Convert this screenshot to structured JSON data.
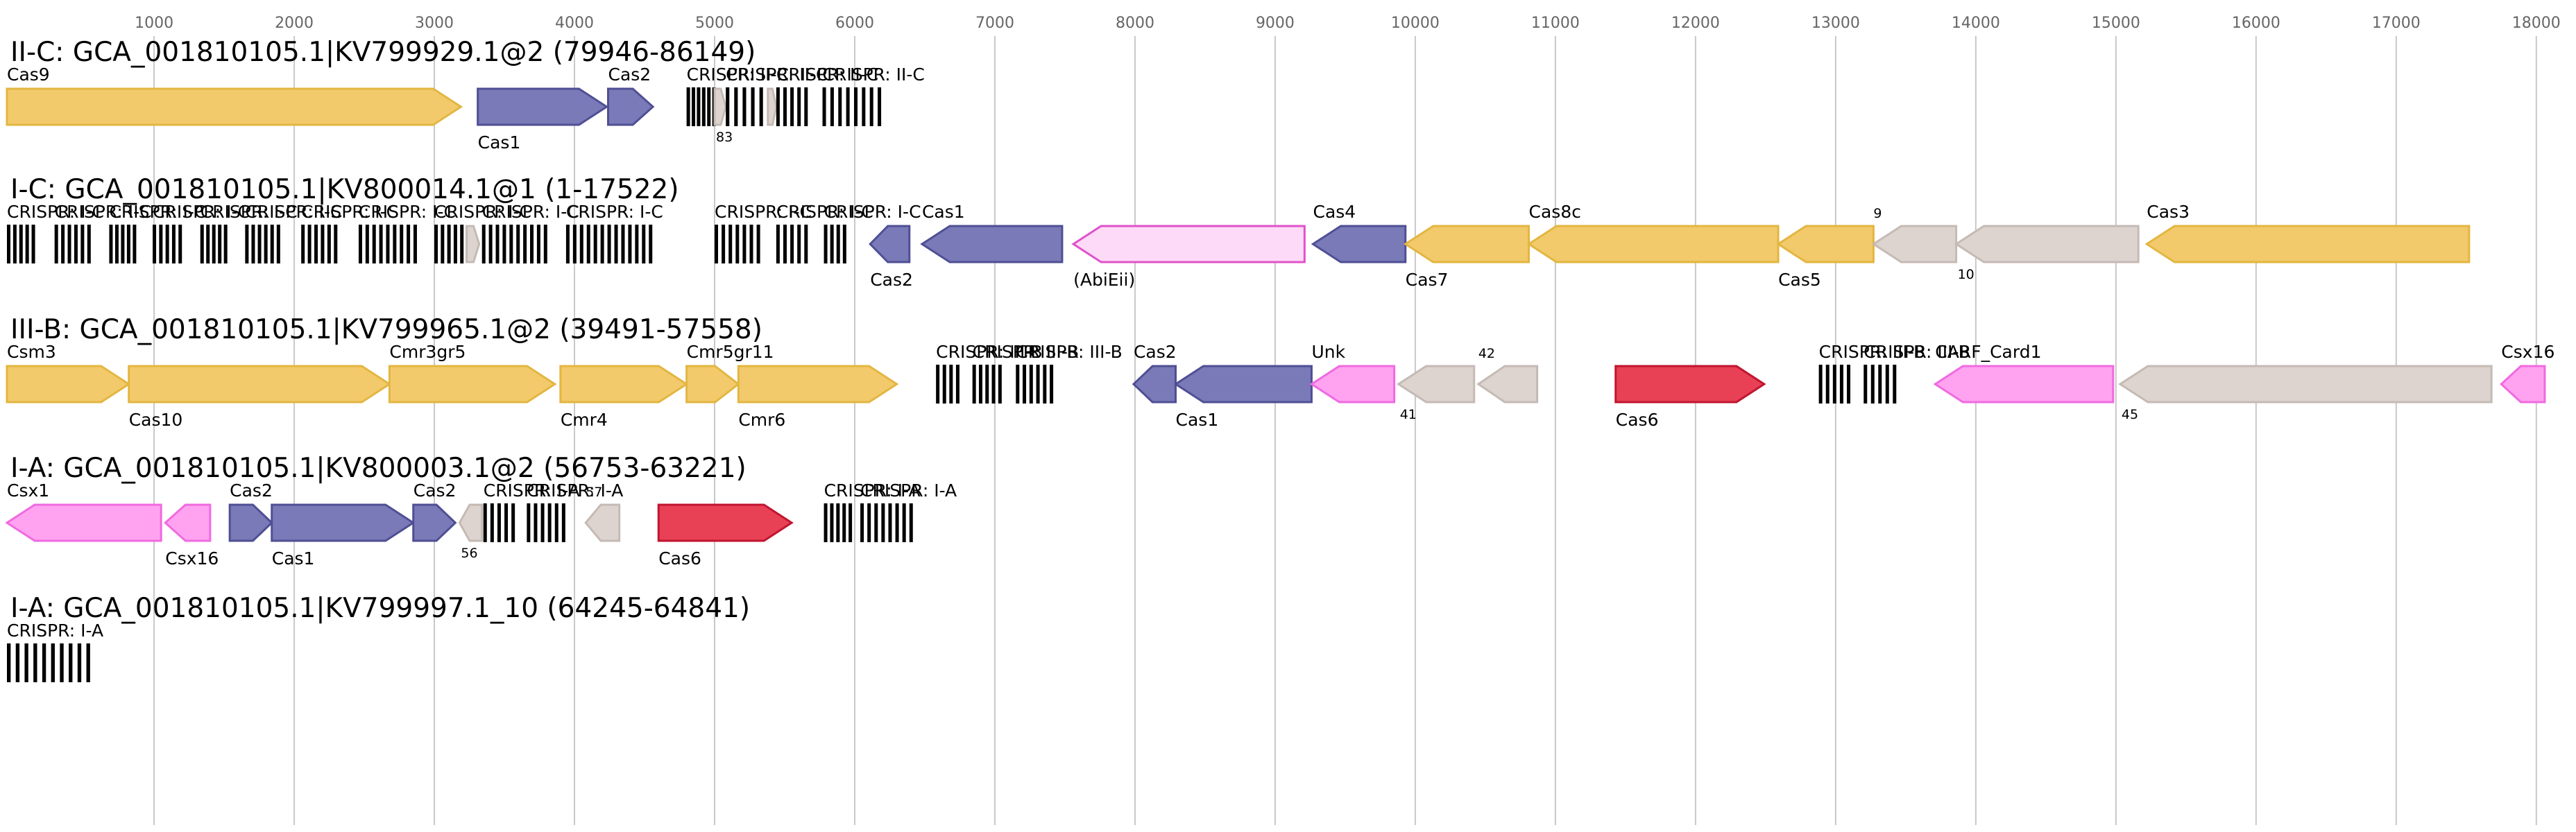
{
  "chart_data": {
    "type": "genome-diagram",
    "axis_ticks": [
      1000,
      2000,
      3000,
      4000,
      5000,
      6000,
      7000,
      8000,
      9000,
      10000,
      11000,
      12000,
      13000,
      14000,
      15000,
      16000,
      17000,
      18000
    ],
    "xlim": [
      -50,
      18100
    ],
    "colors": {
      "core": "#F2CA6B",
      "adapt": "#7A7AB8",
      "rare": "#FFA3F0",
      "cas6": "#E84155",
      "hypo": "#DDD4CF",
      "abi": "#FDDAF7"
    },
    "tracks": [
      {
        "title": "II-C: GCA_001810105.1|KV799929.1@2 (79946-86149)",
        "features": [
          {
            "kind": "gene",
            "start": -50,
            "end": 3190,
            "strand": 1,
            "color": "core",
            "label": "Cas9",
            "pos": "above"
          },
          {
            "kind": "gene",
            "start": 3310,
            "end": 4230,
            "strand": 1,
            "color": "adapt",
            "label": "Cas1",
            "pos": "below"
          },
          {
            "kind": "gene",
            "start": 4240,
            "end": 4560,
            "strand": 1,
            "color": "adapt",
            "label": "Cas2",
            "pos": "above"
          },
          {
            "kind": "crispr",
            "start": 4800,
            "end": 5020,
            "repeats": 6,
            "label": "CRISPR: II-C",
            "pos": "above"
          },
          {
            "kind": "gene",
            "start": 5000,
            "end": 5080,
            "strand": 1,
            "color": "hypo",
            "label": "83",
            "pos": "below",
            "small": true
          },
          {
            "kind": "crispr",
            "start": 5080,
            "end": 5380,
            "repeats": 5,
            "label": "CRISPR: II-C",
            "pos": "above"
          },
          {
            "kind": "gene",
            "start": 5380,
            "end": 5440,
            "strand": 1,
            "color": "hypo",
            "label": "",
            "pos": "none"
          },
          {
            "kind": "crispr",
            "start": 5440,
            "end": 5690,
            "repeats": 5,
            "label": "CRISPR: II-C",
            "pos": "above"
          },
          {
            "kind": "crispr",
            "start": 5770,
            "end": 6220,
            "repeats": 8,
            "label": "CRISPR: II-C",
            "pos": "above"
          }
        ]
      },
      {
        "title": "I-C: GCA_001810105.1|KV800014.1@1 (1-17522)",
        "features": [
          {
            "kind": "crispr",
            "start": -50,
            "end": 170,
            "repeats": 5,
            "label": "CRISPR: I-C",
            "pos": "above"
          },
          {
            "kind": "crispr",
            "start": 290,
            "end": 570,
            "repeats": 6,
            "label": "CRISPR: I-C",
            "pos": "above"
          },
          {
            "kind": "crispr",
            "start": 680,
            "end": 890,
            "repeats": 5,
            "label": "CRISPR: I-C",
            "pos": "above"
          },
          {
            "kind": "crispr",
            "start": 990,
            "end": 1220,
            "repeats": 5,
            "label": "CRISPR: I-C",
            "pos": "above"
          },
          {
            "kind": "crispr",
            "start": 1330,
            "end": 1540,
            "repeats": 5,
            "label": "CRISPR: I-C",
            "pos": "above"
          },
          {
            "kind": "crispr",
            "start": 1650,
            "end": 1920,
            "repeats": 6,
            "label": "CRISPR: I-C",
            "pos": "above"
          },
          {
            "kind": "crispr",
            "start": 2050,
            "end": 2330,
            "repeats": 6,
            "label": "CRISPR: I-C",
            "pos": "above"
          },
          {
            "kind": "crispr",
            "start": 2460,
            "end": 2900,
            "repeats": 9,
            "label": "CRISPR: I-C",
            "pos": "above"
          },
          {
            "kind": "crispr",
            "start": 3000,
            "end": 3230,
            "repeats": 5,
            "label": "CRISPR: I-C",
            "pos": "above"
          },
          {
            "kind": "gene",
            "start": 3230,
            "end": 3320,
            "strand": 1,
            "color": "hypo",
            "label": "",
            "pos": "none"
          },
          {
            "kind": "crispr",
            "start": 3340,
            "end": 3830,
            "repeats": 10,
            "label": "CRISPR: I-C",
            "pos": "above"
          },
          {
            "kind": "crispr",
            "start": 3940,
            "end": 4580,
            "repeats": 13,
            "label": "CRISPR: I-C",
            "pos": "above"
          },
          {
            "kind": "crispr",
            "start": 5000,
            "end": 5350,
            "repeats": 7,
            "label": "CRISPR: I-C",
            "pos": "above"
          },
          {
            "kind": "crispr",
            "start": 5440,
            "end": 5690,
            "repeats": 5,
            "label": "CRISPR: I-C",
            "pos": "above"
          },
          {
            "kind": "crispr",
            "start": 5780,
            "end": 5960,
            "repeats": 4,
            "label": "CRISPR: I-C",
            "pos": "above"
          },
          {
            "kind": "gene",
            "start": 6110,
            "end": 6390,
            "strand": -1,
            "color": "adapt",
            "label": "Cas2",
            "pos": "below"
          },
          {
            "kind": "gene",
            "start": 6480,
            "end": 7480,
            "strand": -1,
            "color": "adapt",
            "label": "Cas1",
            "pos": "above"
          },
          {
            "kind": "gene",
            "start": 7560,
            "end": 9210,
            "strand": -1,
            "color": "abi",
            "label": "(AbiEii)",
            "pos": "below"
          },
          {
            "kind": "gene",
            "start": 9270,
            "end": 9930,
            "strand": -1,
            "color": "adapt",
            "label": "Cas4",
            "pos": "above"
          },
          {
            "kind": "gene",
            "start": 9930,
            "end": 10810,
            "strand": -1,
            "color": "core",
            "label": "Cas7",
            "pos": "below"
          },
          {
            "kind": "gene",
            "start": 10810,
            "end": 12590,
            "strand": -1,
            "color": "core",
            "label": "Cas8c",
            "pos": "above"
          },
          {
            "kind": "gene",
            "start": 12590,
            "end": 13270,
            "strand": -1,
            "color": "core",
            "label": "Cas5",
            "pos": "below"
          },
          {
            "kind": "gene",
            "start": 13270,
            "end": 13860,
            "strand": -1,
            "color": "hypo",
            "label": "9",
            "pos": "above",
            "small": true
          },
          {
            "kind": "gene",
            "start": 13860,
            "end": 15160,
            "strand": -1,
            "color": "hypo",
            "label": "10",
            "pos": "below",
            "small": true
          },
          {
            "kind": "gene",
            "start": 15220,
            "end": 17520,
            "strand": -1,
            "color": "core",
            "label": "Cas3",
            "pos": "above"
          }
        ]
      },
      {
        "title": "III-B: GCA_001810105.1|KV799965.1@2 (39491-57558)",
        "features": [
          {
            "kind": "gene",
            "start": -50,
            "end": 820,
            "strand": 1,
            "color": "core",
            "label": "Csm3",
            "pos": "above"
          },
          {
            "kind": "gene",
            "start": 820,
            "end": 2680,
            "strand": 1,
            "color": "core",
            "label": "Cas10",
            "pos": "below"
          },
          {
            "kind": "gene",
            "start": 2680,
            "end": 3860,
            "strand": 1,
            "color": "core",
            "label": "Cmr3gr5",
            "pos": "above"
          },
          {
            "kind": "gene",
            "start": 3900,
            "end": 4800,
            "strand": 1,
            "color": "core",
            "label": "Cmr4",
            "pos": "below"
          },
          {
            "kind": "gene",
            "start": 4800,
            "end": 5170,
            "strand": 1,
            "color": "core",
            "label": "Cmr5gr11",
            "pos": "above"
          },
          {
            "kind": "gene",
            "start": 5170,
            "end": 6300,
            "strand": 1,
            "color": "core",
            "label": "Cmr6",
            "pos": "below"
          },
          {
            "kind": "crispr",
            "start": 6580,
            "end": 6770,
            "repeats": 4,
            "label": "CRISPR: III-B",
            "pos": "above"
          },
          {
            "kind": "crispr",
            "start": 6840,
            "end": 7070,
            "repeats": 5,
            "label": "CRISPR: III-B",
            "pos": "above"
          },
          {
            "kind": "crispr",
            "start": 7150,
            "end": 7440,
            "repeats": 6,
            "label": "CRISPR: III-B",
            "pos": "above"
          },
          {
            "kind": "gene",
            "start": 7990,
            "end": 8290,
            "strand": -1,
            "color": "adapt",
            "label": "Cas2",
            "pos": "above"
          },
          {
            "kind": "gene",
            "start": 8290,
            "end": 9260,
            "strand": -1,
            "color": "adapt",
            "label": "Cas1",
            "pos": "below"
          },
          {
            "kind": "gene",
            "start": 9260,
            "end": 9850,
            "strand": -1,
            "color": "rare",
            "label": "Unk",
            "pos": "above"
          },
          {
            "kind": "gene",
            "start": 9880,
            "end": 10420,
            "strand": -1,
            "color": "hypo",
            "label": "41",
            "pos": "below",
            "small": true
          },
          {
            "kind": "gene",
            "start": 10450,
            "end": 10870,
            "strand": -1,
            "color": "hypo",
            "label": "42",
            "pos": "above",
            "small": true
          },
          {
            "kind": "gene",
            "start": 11430,
            "end": 12490,
            "strand": 1,
            "color": "cas6",
            "label": "Cas6",
            "pos": "below"
          },
          {
            "kind": "crispr",
            "start": 12880,
            "end": 13130,
            "repeats": 5,
            "label": "CRISPR: III-B",
            "pos": "above"
          },
          {
            "kind": "crispr",
            "start": 13200,
            "end": 13460,
            "repeats": 5,
            "label": "CRISPR: III-B",
            "pos": "above"
          },
          {
            "kind": "gene",
            "start": 13710,
            "end": 14980,
            "strand": -1,
            "color": "rare",
            "label": "CARF_Card1",
            "pos": "above"
          },
          {
            "kind": "gene",
            "start": 15030,
            "end": 17680,
            "strand": -1,
            "color": "hypo",
            "label": "45",
            "pos": "below",
            "small": true
          },
          {
            "kind": "gene",
            "start": 17750,
            "end": 18060,
            "strand": -1,
            "color": "rare",
            "label": "Csx16",
            "pos": "above"
          }
        ]
      },
      {
        "title": "I-A: GCA_001810105.1|KV800003.1@2 (56753-63221)",
        "features": [
          {
            "kind": "gene",
            "start": -50,
            "end": 1050,
            "strand": -1,
            "color": "rare",
            "label": "Csx1",
            "pos": "above"
          },
          {
            "kind": "gene",
            "start": 1080,
            "end": 1400,
            "strand": -1,
            "color": "rare",
            "label": "Csx16",
            "pos": "below"
          },
          {
            "kind": "gene",
            "start": 1540,
            "end": 1840,
            "strand": 1,
            "color": "adapt",
            "label": "Cas2",
            "pos": "above"
          },
          {
            "kind": "gene",
            "start": 1840,
            "end": 2850,
            "strand": 1,
            "color": "adapt",
            "label": "Cas1",
            "pos": "below"
          },
          {
            "kind": "gene",
            "start": 2850,
            "end": 3150,
            "strand": 1,
            "color": "adapt",
            "label": "Cas2",
            "pos": "above"
          },
          {
            "kind": "gene",
            "start": 3180,
            "end": 3340,
            "strand": -1,
            "color": "hypo",
            "label": "56",
            "pos": "below",
            "small": true
          },
          {
            "kind": "crispr",
            "start": 3350,
            "end": 3600,
            "repeats": 5,
            "label": "CRISPR: I-A",
            "pos": "above"
          },
          {
            "kind": "crispr",
            "start": 3660,
            "end": 3960,
            "repeats": 6,
            "label": "CRISPR: I-A",
            "pos": "above"
          },
          {
            "kind": "gene",
            "start": 4080,
            "end": 4320,
            "strand": -1,
            "color": "hypo",
            "label": "57",
            "pos": "above",
            "small": true
          },
          {
            "kind": "gene",
            "start": 4600,
            "end": 5550,
            "strand": 1,
            "color": "cas6",
            "label": "Cas6",
            "pos": "below"
          },
          {
            "kind": "crispr",
            "start": 5780,
            "end": 6000,
            "repeats": 5,
            "label": "CRISPR: I-A",
            "pos": "above"
          },
          {
            "kind": "crispr",
            "start": 6040,
            "end": 6440,
            "repeats": 8,
            "label": "CRISPR: I-A",
            "pos": "above"
          }
        ]
      },
      {
        "title": "I-A: GCA_001810105.1|KV799997.1_10 (64245-64841)",
        "features": [
          {
            "kind": "crispr",
            "start": -50,
            "end": 580,
            "repeats": 10,
            "label": "CRISPR: I-A",
            "pos": "above"
          }
        ]
      }
    ]
  }
}
